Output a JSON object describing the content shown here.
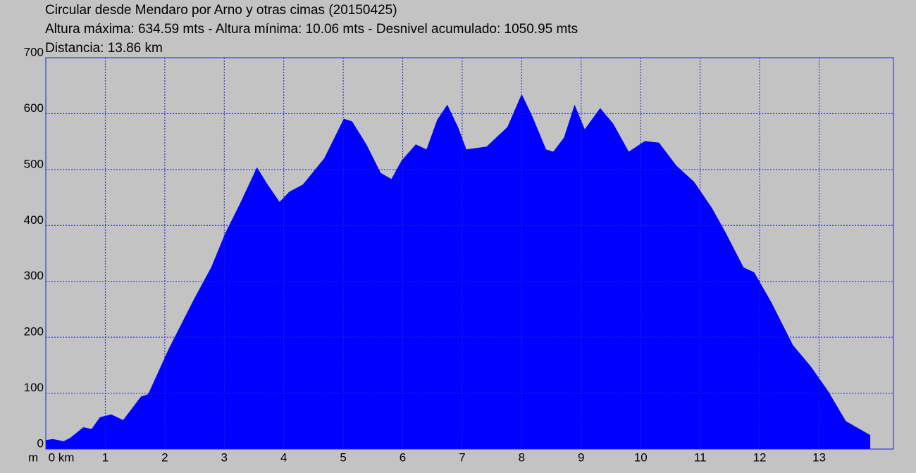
{
  "chart_data": {
    "type": "area",
    "title": "Circular desde Mendaro por Arno y otras cimas (20150425)",
    "subtitle": "Altura máxima: 634.59 mts - Altura mínima: 10.06 mts - Desnivel acumulado: 1050.95 mts",
    "distance": "Distancia: 13.86 km",
    "y_unit": "m",
    "color": "#0000ff",
    "grid": true,
    "xlim": [
      0,
      14.25
    ],
    "ylim": [
      0,
      700
    ],
    "xticks": [
      {
        "value": 0,
        "label": "0 km"
      },
      1,
      2,
      3,
      4,
      5,
      6,
      7,
      8,
      9,
      10,
      11,
      12,
      13
    ],
    "yticks": [
      0,
      100,
      200,
      300,
      400,
      500,
      600,
      700
    ],
    "x": [
      0,
      0.12,
      0.3,
      0.41,
      0.63,
      0.77,
      0.91,
      1.1,
      1.3,
      1.6,
      1.72,
      2.07,
      2.49,
      2.78,
      3.02,
      3.26,
      3.55,
      3.73,
      3.93,
      4.09,
      4.32,
      4.68,
      5.01,
      5.15,
      5.39,
      5.63,
      5.81,
      5.98,
      6.22,
      6.4,
      6.58,
      6.75,
      6.93,
      7.07,
      7.41,
      7.76,
      8.0,
      8.18,
      8.41,
      8.53,
      8.71,
      8.89,
      9.06,
      9.32,
      9.54,
      9.8,
      10.07,
      10.31,
      10.6,
      10.9,
      11.2,
      11.43,
      11.73,
      11.91,
      12.2,
      12.56,
      12.86,
      13.15,
      13.45,
      13.63,
      13.86
    ],
    "y": [
      16,
      18,
      14,
      20,
      39,
      36,
      57,
      62,
      52,
      94,
      98,
      180,
      268,
      325,
      387,
      438,
      504,
      473,
      442,
      460,
      473,
      520,
      591,
      586,
      545,
      494,
      483,
      516,
      545,
      536,
      589,
      616,
      576,
      536,
      541,
      576,
      635,
      595,
      536,
      532,
      557,
      616,
      572,
      610,
      582,
      532,
      551,
      548,
      507,
      478,
      431,
      387,
      325,
      316,
      262,
      186,
      148,
      104,
      50,
      39,
      25
    ]
  }
}
